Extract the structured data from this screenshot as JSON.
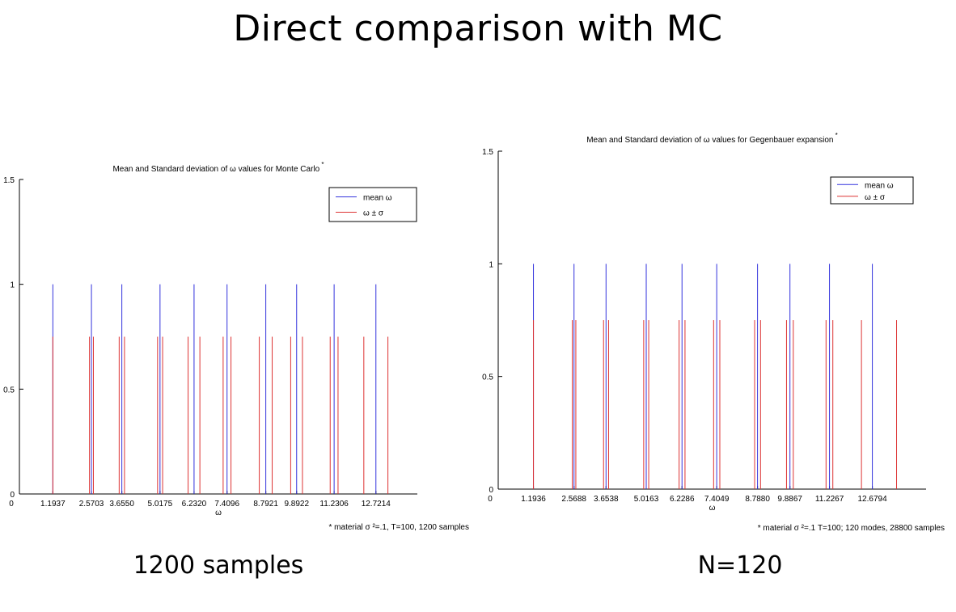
{
  "slide": {
    "title": "Direct comparison with MC",
    "caption_left": "1200 samples",
    "caption_right": "N=120"
  },
  "colors": {
    "mean": "#3333dd",
    "sigma": "#dd3333",
    "axis": "#000000"
  },
  "chart_data": [
    {
      "type": "bar",
      "title": "Mean and Standard deviation of ω  values for Monte Carlo",
      "title_mark": "*",
      "xlabel": "ω",
      "ylabel": "",
      "ylim": [
        0,
        1.5
      ],
      "yticks": [
        0,
        0.5,
        1,
        1.5
      ],
      "ytick_labels": [
        "0",
        "0.5",
        "1",
        "1.5"
      ],
      "xlim": [
        0,
        14.2
      ],
      "x_zero_label": "0",
      "xticks": [
        1.1937,
        2.5703,
        3.655,
        5.0175,
        6.232,
        7.4096,
        8.7921,
        9.8922,
        11.2306,
        12.7214
      ],
      "xtick_labels": [
        "1.1937",
        "2.5703",
        "3.6550",
        "5.0175",
        "6.2320",
        "7.4096",
        "8.7921",
        "9.8922",
        "11.2306",
        "12.7214"
      ],
      "legend": {
        "position": "top-right",
        "entries": [
          "mean ω",
          "ω ± σ"
        ]
      },
      "series": [
        {
          "name": "mean ω",
          "color": "blue",
          "x": [
            1.1937,
            2.5703,
            3.655,
            5.0175,
            6.232,
            7.4096,
            8.7921,
            9.8922,
            11.2306,
            12.7214
          ],
          "height": 1
        },
        {
          "name": "ω ± σ",
          "color": "red",
          "x": [
            1.1937,
            2.5,
            2.64,
            3.56,
            3.75,
            4.93,
            5.11,
            6.02,
            6.44,
            7.27,
            7.55,
            8.56,
            9.02,
            9.68,
            10.1,
            11.09,
            11.37,
            12.29,
            13.15
          ],
          "height": 0.75
        }
      ],
      "note": "* material σ ²=.1, T=100, 1200 samples"
    },
    {
      "type": "bar",
      "title": "Mean and Standard deviation of ω  values for Gegenbauer expansion",
      "title_mark": "*",
      "xlabel": "ω",
      "ylabel": "",
      "ylim": [
        0,
        1.5
      ],
      "yticks": [
        0,
        0.5,
        1,
        1.5
      ],
      "ytick_labels": [
        "0",
        "0.5",
        "1",
        "1.5"
      ],
      "xlim": [
        0,
        14.5
      ],
      "x_zero_label": "0",
      "xticks": [
        1.1936,
        2.5688,
        3.6538,
        5.0163,
        6.2286,
        7.4049,
        8.788,
        9.8867,
        11.2267,
        12.6794
      ],
      "xtick_labels": [
        "1.1936",
        "2.5688",
        "3.6538",
        "5.0163",
        "6.2286",
        "7.4049",
        "8.7880",
        "9.8867",
        "11.2267",
        "12.6794"
      ],
      "legend": {
        "position": "top-right",
        "entries": [
          "mean ω",
          "ω ± σ"
        ]
      },
      "series": [
        {
          "name": "mean ω",
          "color": "blue",
          "x": [
            1.1936,
            2.5688,
            3.6538,
            5.0163,
            6.2286,
            7.4049,
            8.788,
            9.8867,
            11.2267,
            12.6794
          ],
          "height": 1
        },
        {
          "name": "ω ± σ",
          "color": "red",
          "x": [
            1.1936,
            2.51,
            2.63,
            3.57,
            3.74,
            4.93,
            5.1,
            6.13,
            6.33,
            7.3,
            7.51,
            8.69,
            8.89,
            9.77,
            10.0,
            11.11,
            11.34,
            12.31,
            13.5
          ],
          "height": 0.75
        }
      ],
      "note": "* material σ ²=.1 T=100; 120 modes, 28800 samples"
    }
  ]
}
